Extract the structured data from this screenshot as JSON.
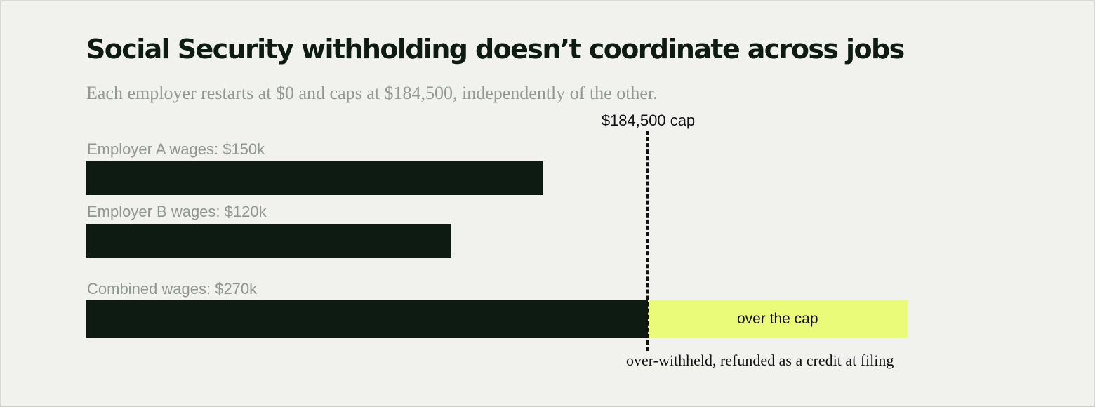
{
  "chart_data": {
    "type": "bar",
    "orientation": "horizontal",
    "title": "Social Security withholding doesn’t coordinate across jobs",
    "subtitle": "Each employer restarts at $0 and caps at $184,500, independently of the other.",
    "bars": [
      {
        "label": "Employer A wages: $150k",
        "value": 150000
      },
      {
        "label": "Employer B wages: $120k",
        "value": 120000
      },
      {
        "label": "Combined wages: $270k",
        "value": 270000
      }
    ],
    "cap": {
      "label": "$184,500 cap",
      "value": 184500
    },
    "over_cap_label": "over the cap",
    "annotation": "over-withheld, refunded as a credit at filing",
    "colors": {
      "bar": "#0e1b12",
      "over_cap": "#eafb7a",
      "background": "#f1f1ed",
      "label": "#8f978f"
    },
    "xlim": [
      0,
      270000
    ],
    "grid": false
  }
}
